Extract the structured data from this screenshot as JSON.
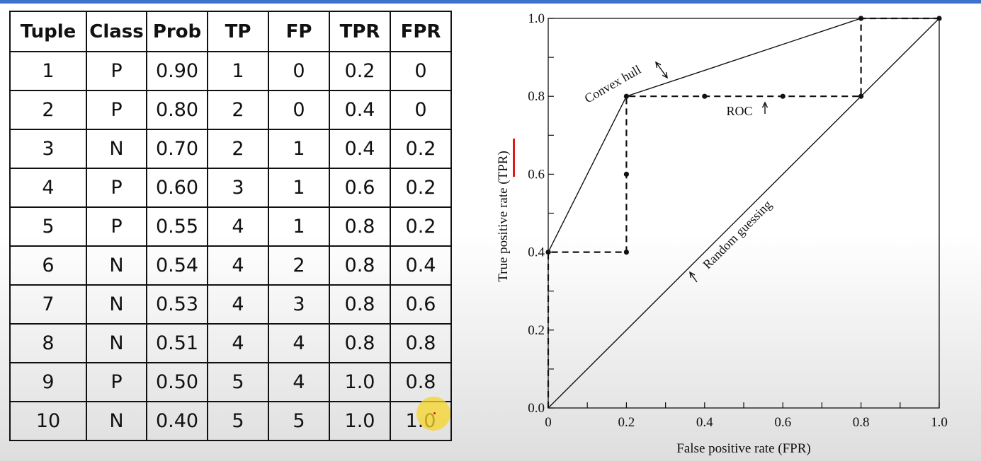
{
  "table": {
    "headers": [
      "Tuple",
      "Class",
      "Prob",
      "TP",
      "FP",
      "TPR",
      "FPR"
    ],
    "rows": [
      [
        "1",
        "P",
        "0.90",
        "1",
        "0",
        "0.2",
        "0"
      ],
      [
        "2",
        "P",
        "0.80",
        "2",
        "0",
        "0.4",
        "0"
      ],
      [
        "3",
        "N",
        "0.70",
        "2",
        "1",
        "0.4",
        "0.2"
      ],
      [
        "4",
        "P",
        "0.60",
        "3",
        "1",
        "0.6",
        "0.2"
      ],
      [
        "5",
        "P",
        "0.55",
        "4",
        "1",
        "0.8",
        "0.2"
      ],
      [
        "6",
        "N",
        "0.54",
        "4",
        "2",
        "0.8",
        "0.4"
      ],
      [
        "7",
        "N",
        "0.53",
        "4",
        "3",
        "0.8",
        "0.6"
      ],
      [
        "8",
        "N",
        "0.51",
        "4",
        "4",
        "0.8",
        "0.8"
      ],
      [
        "9",
        "P",
        "0.50",
        "5",
        "4",
        "1.0",
        "0.8"
      ],
      [
        "10",
        "N",
        "0.40",
        "5",
        "5",
        "1.0",
        "1.0"
      ]
    ]
  },
  "chart_data": {
    "type": "line",
    "xlabel": "False positive rate (FPR)",
    "ylabel": "True positive rate (TPR)",
    "xlim": [
      0,
      1
    ],
    "ylim": [
      0,
      1
    ],
    "x_ticks": [
      "0",
      "0.2",
      "0.4",
      "0.6",
      "0.8",
      "1.0"
    ],
    "y_ticks": [
      "0.0",
      "0.2",
      "0.4",
      "0.6",
      "0.8",
      "1.0"
    ],
    "series": [
      {
        "name": "ROC",
        "style": "dashed",
        "x": [
          0,
          0,
          0.2,
          0.2,
          0.2,
          0.4,
          0.6,
          0.8,
          0.8,
          1.0
        ],
        "y": [
          0,
          0.4,
          0.4,
          0.6,
          0.8,
          0.8,
          0.8,
          0.8,
          1.0,
          1.0
        ]
      },
      {
        "name": "Convex hull",
        "style": "solid",
        "x": [
          0,
          0.2,
          0.8,
          1.0
        ],
        "y": [
          0.4,
          0.8,
          1.0,
          1.0
        ]
      },
      {
        "name": "Random guessing",
        "style": "solid",
        "x": [
          0,
          1.0
        ],
        "y": [
          0,
          1.0
        ]
      }
    ],
    "points": {
      "x": [
        0,
        0.2,
        0.2,
        0.2,
        0.4,
        0.6,
        0.8,
        0.8,
        1.0
      ],
      "y": [
        0.4,
        0.4,
        0.6,
        0.8,
        0.8,
        0.8,
        0.8,
        1.0,
        1.0
      ]
    },
    "annotations": [
      "Convex hull",
      "ROC",
      "Random guessing"
    ],
    "grid": false,
    "colors": {
      "line": "#111111",
      "cursor": "#f6d628",
      "marker": "#e01818",
      "accent": "#3d72c9"
    }
  }
}
